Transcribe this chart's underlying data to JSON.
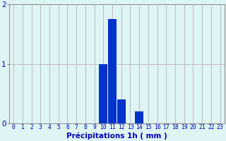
{
  "hours": [
    0,
    1,
    2,
    3,
    4,
    5,
    6,
    7,
    8,
    9,
    10,
    11,
    12,
    13,
    14,
    15,
    16,
    17,
    18,
    19,
    20,
    21,
    22,
    23
  ],
  "values": [
    0,
    0,
    0,
    0,
    0,
    0,
    0,
    0,
    0,
    0,
    1.0,
    1.75,
    0.4,
    0,
    0.2,
    0,
    0,
    0,
    0,
    0,
    0,
    0,
    0,
    0
  ],
  "bar_color": "#0033cc",
  "background_color": "#dff4f4",
  "grid_color": "#b8b0bc",
  "xlabel": "Précipitations 1h ( mm )",
  "xlabel_color": "#0000bb",
  "tick_color": "#0000bb",
  "axis_color": "#888888",
  "ylim": [
    0,
    2
  ],
  "yticks": [
    0,
    1,
    2
  ],
  "xlim": [
    -0.5,
    23.5
  ],
  "tick_fontsize": 5.8,
  "xlabel_fontsize": 7.5,
  "ytick_fontsize": 7.5
}
